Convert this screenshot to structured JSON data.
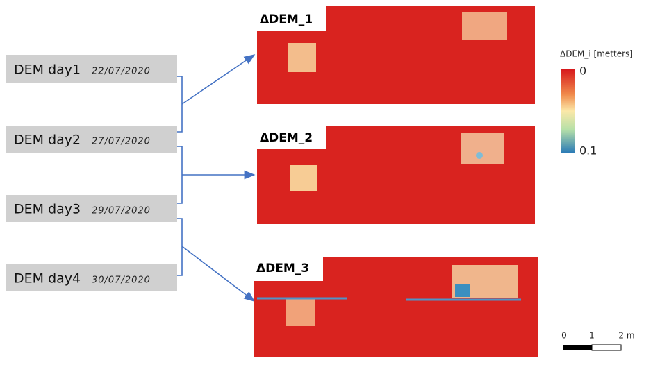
{
  "dems": [
    {
      "label": "DEM day1",
      "date": "22/07/2020"
    },
    {
      "label": "DEM day2",
      "date": "27/07/2020"
    },
    {
      "label": "DEM day3",
      "date": "29/07/2020"
    },
    {
      "label": "DEM day4",
      "date": "30/07/2020"
    }
  ],
  "maps": [
    {
      "title": "ΔDEM_1"
    },
    {
      "title": "ΔDEM_2"
    },
    {
      "title": "ΔDEM_3"
    }
  ],
  "legend": {
    "title": "ΔDEM_i [metters]",
    "labels": [
      "0",
      "0.1"
    ]
  },
  "scale": {
    "labels": [
      "0",
      "1",
      "2 m"
    ]
  }
}
